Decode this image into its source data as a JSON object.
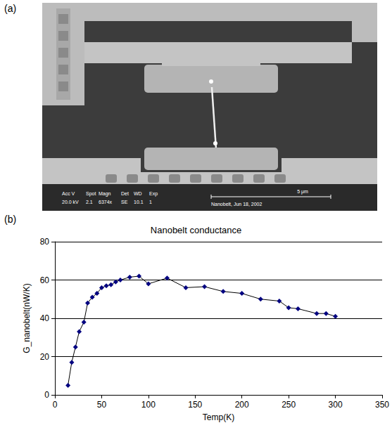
{
  "micrograph": {
    "label": "(a)",
    "info_bar": {
      "headers": [
        "Acc V",
        "Spot",
        "Magn",
        "Det",
        "WD",
        "Exp"
      ],
      "values": [
        "20.0 kV",
        "2.1",
        "6374x",
        "SE",
        "10.1",
        "1"
      ],
      "scale_bar": "5 μm",
      "caption": "Nanobelt, Jun 18, 2002"
    }
  },
  "chart_data": {
    "type": "line",
    "panel": "(b)",
    "title": "Nanobelt conductance",
    "x_label": "Temp(K)",
    "y_label": "G_nanobelt(nW/K)",
    "x": [
      14,
      18,
      22,
      26,
      31,
      35,
      40,
      45,
      50,
      55,
      60,
      65,
      70,
      80,
      90,
      100,
      120,
      140,
      160,
      180,
      200,
      220,
      240,
      250,
      260,
      280,
      290,
      300
    ],
    "series": [
      {
        "name": "G_nanobelt",
        "color": "#000080",
        "marker": "diamond",
        "values": [
          5,
          17,
          25,
          33,
          38,
          48,
          51,
          53,
          56,
          57,
          57.5,
          59,
          60,
          61.5,
          62,
          58,
          61,
          56,
          56.5,
          54,
          53,
          50,
          49,
          45.5,
          45,
          42.5,
          42.5,
          41
        ]
      }
    ],
    "xlim": [
      0,
      350
    ],
    "xticks": [
      0,
      50,
      100,
      150,
      200,
      250,
      300,
      350
    ],
    "ylim": [
      0,
      80
    ],
    "yticks": [
      0,
      20,
      40,
      60,
      80
    ],
    "grid": true
  }
}
